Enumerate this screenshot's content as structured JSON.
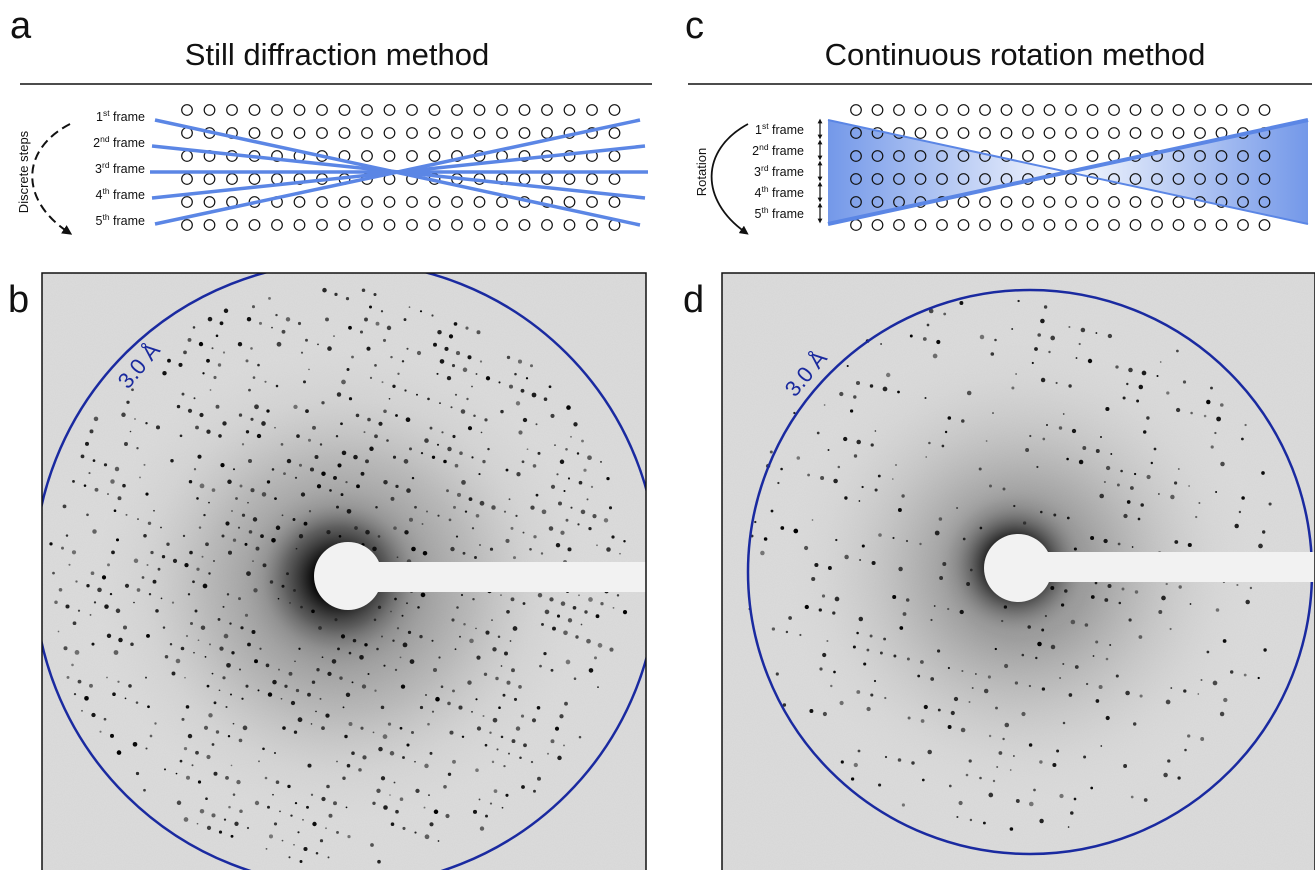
{
  "panels": {
    "a": {
      "letter": "a",
      "title": "Still diffraction method",
      "side_label": "Discrete steps",
      "frames": [
        {
          "num": "1",
          "sup": "st",
          "word": "frame"
        },
        {
          "num": "2",
          "sup": "nd",
          "word": "frame"
        },
        {
          "num": "3",
          "sup": "rd",
          "word": "frame"
        },
        {
          "num": "4",
          "sup": "th",
          "word": "frame"
        },
        {
          "num": "5",
          "sup": "th",
          "word": "frame"
        }
      ],
      "lattice_rows": 6,
      "lattice_cols": 20
    },
    "b": {
      "letter": "b",
      "resolution_label": "3.0 Å"
    },
    "c": {
      "letter": "c",
      "title": "Continuous rotation method",
      "side_label": "Rotation",
      "frames": [
        {
          "num": "1",
          "sup": "st",
          "word": "frame"
        },
        {
          "num": "2",
          "sup": "nd",
          "word": "frame"
        },
        {
          "num": "3",
          "sup": "rd",
          "word": "frame"
        },
        {
          "num": "4",
          "sup": "th",
          "word": "frame"
        },
        {
          "num": "5",
          "sup": "th",
          "word": "frame"
        }
      ],
      "lattice_rows": 6,
      "lattice_cols": 20
    },
    "d": {
      "letter": "d",
      "resolution_label": "3.0 Å"
    }
  },
  "colors": {
    "beam": "#5b86e5",
    "beam_fill": "#5b86e5",
    "resolution_ring": "#1a2aa0",
    "ink": "#111111",
    "detector_background": "#dcdcdc",
    "beamstop": "#f2f2f2"
  },
  "icons": [
    "dashed-curved-arrow-icon",
    "curved-arrow-icon",
    "double-headed-arrow-icon"
  ]
}
